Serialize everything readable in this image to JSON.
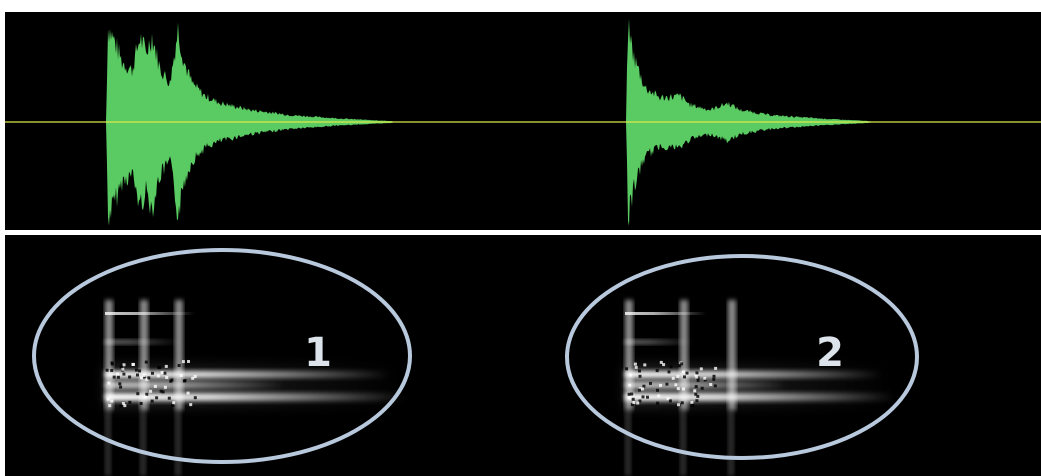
{
  "annotations": [
    {
      "label": "1"
    },
    {
      "label": "2"
    }
  ]
}
